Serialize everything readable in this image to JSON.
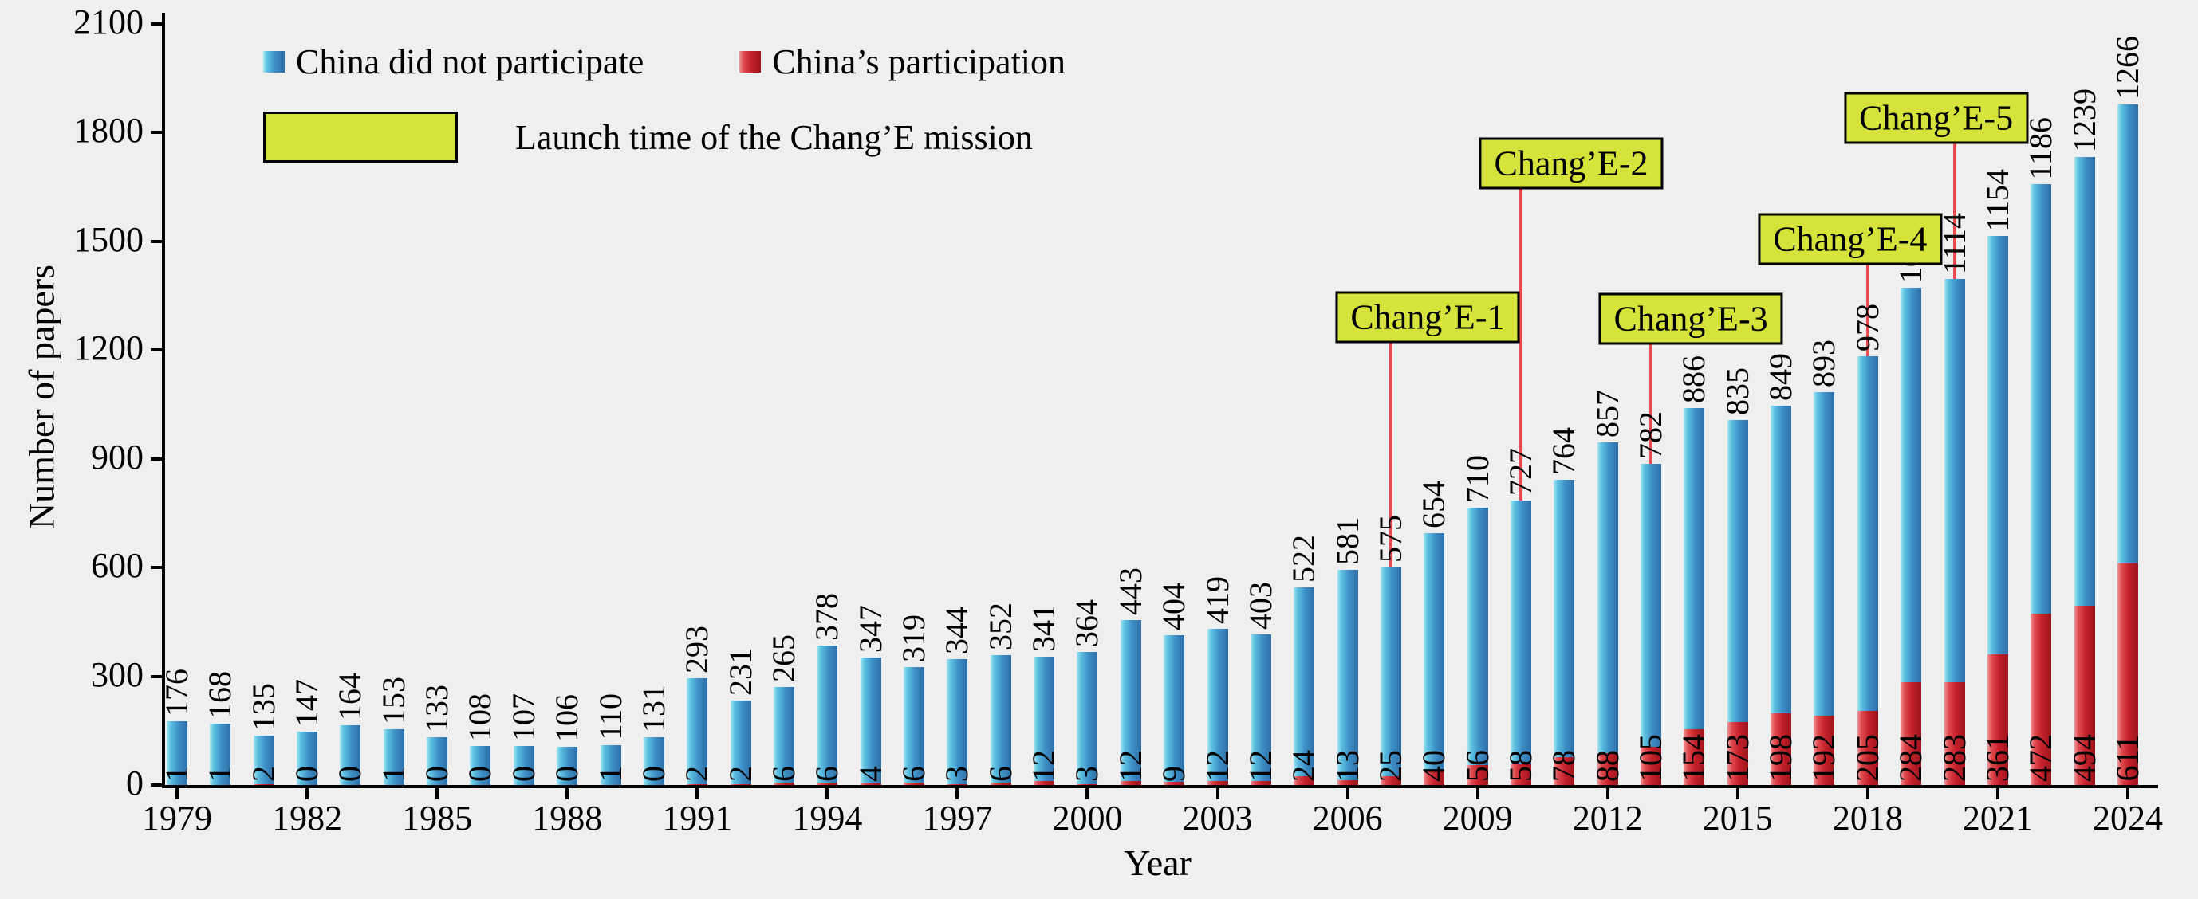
{
  "page": {
    "background": "#efefef"
  },
  "colors": {
    "bar_blue": "#3e90c8",
    "bar_red": "#c5202a",
    "mission_box": "#d6e33b",
    "annotation_line": "#e84a52",
    "axis": "#000000"
  },
  "legend": {
    "items": [
      {
        "label": "China did not participate",
        "color": "#3e90c8"
      },
      {
        "label": "China’s participation",
        "color": "#c5202a"
      }
    ],
    "launch_label": "Launch time of the Chang’E mission"
  },
  "missions": [
    {
      "label": "Chang’E-1",
      "year": 2007
    },
    {
      "label": "Chang’E-2",
      "year": 2010
    },
    {
      "label": "Chang’E-3",
      "year": 2013
    },
    {
      "label": "Chang’E-4",
      "year": 2018
    },
    {
      "label": "Chang’E-5",
      "year": 2020
    }
  ],
  "chart_data": {
    "type": "bar",
    "stacked": true,
    "title": "",
    "xlabel": "Year",
    "ylabel": "Number of papers",
    "ylim": [
      0,
      2100
    ],
    "y_ticks": [
      0,
      300,
      600,
      900,
      1200,
      1500,
      1800,
      2100
    ],
    "x_tick_labels": [
      "1979",
      "1982",
      "1985",
      "1988",
      "1991",
      "1994",
      "1997",
      "2000",
      "2003",
      "2006",
      "2009",
      "2012",
      "2015",
      "2018",
      "2021",
      "2024"
    ],
    "years": [
      1979,
      1980,
      1981,
      1982,
      1983,
      1984,
      1985,
      1986,
      1987,
      1988,
      1989,
      1990,
      1991,
      1992,
      1993,
      1994,
      1995,
      1996,
      1997,
      1998,
      1999,
      2000,
      2001,
      2002,
      2003,
      2004,
      2005,
      2006,
      2007,
      2008,
      2009,
      2010,
      2011,
      2012,
      2013,
      2014,
      2015,
      2016,
      2017,
      2018,
      2019,
      2020,
      2021,
      2022,
      2023,
      2024
    ],
    "series": [
      {
        "name": "China’s participation",
        "color": "#c5202a",
        "values": [
          1,
          1,
          2,
          0,
          0,
          1,
          0,
          0,
          0,
          0,
          1,
          0,
          2,
          2,
          6,
          6,
          4,
          6,
          3,
          6,
          12,
          3,
          12,
          9,
          12,
          12,
          24,
          13,
          25,
          40,
          56,
          58,
          78,
          88,
          105,
          154,
          173,
          198,
          192,
          205,
          284,
          283,
          361,
          472,
          494,
          611
        ]
      },
      {
        "name": "China did not participate",
        "color": "#3e90c8",
        "values": [
          176,
          168,
          135,
          147,
          164,
          153,
          133,
          108,
          107,
          106,
          110,
          131,
          293,
          231,
          265,
          378,
          347,
          319,
          344,
          352,
          341,
          364,
          443,
          404,
          419,
          403,
          522,
          581,
          575,
          654,
          710,
          727,
          764,
          857,
          782,
          886,
          835,
          849,
          893,
          978,
          1089,
          1114,
          1154,
          1186,
          1239,
          1266
        ]
      }
    ],
    "legend_position": "upper-left",
    "grid": false
  }
}
